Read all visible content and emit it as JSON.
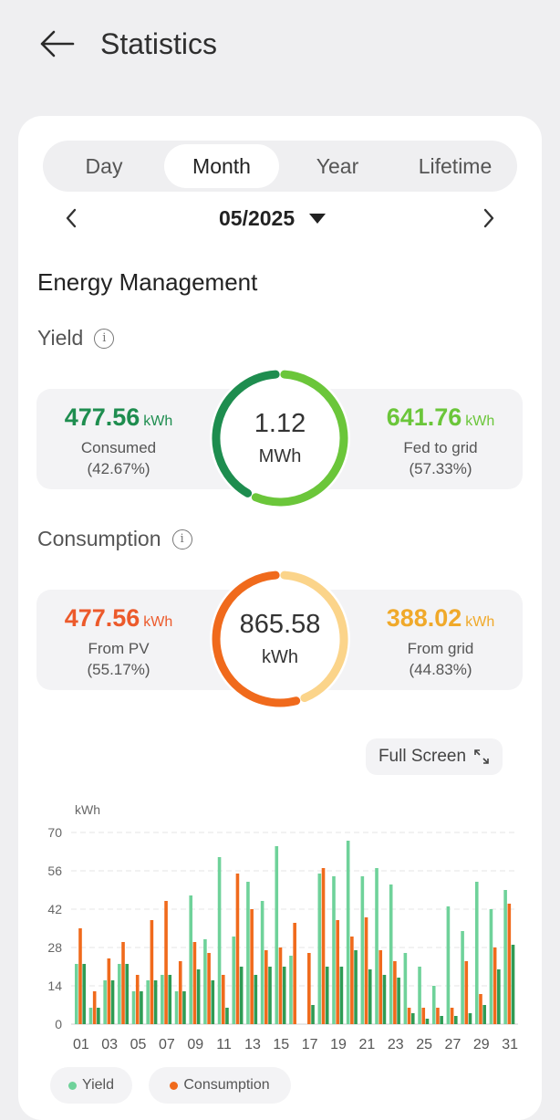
{
  "header": {
    "title": "Statistics"
  },
  "tabs": [
    {
      "label": "Day"
    },
    {
      "label": "Month"
    },
    {
      "label": "Year"
    },
    {
      "label": "Lifetime"
    }
  ],
  "active_tab": "Month",
  "date": "05/2025",
  "section_title": "Energy Management",
  "yield": {
    "title": "Yield",
    "total_value": "1.12",
    "total_unit": "MWh",
    "consumed": {
      "value": "477.56",
      "unit": "kWh",
      "label": "Consumed",
      "percent": "(42.67%)",
      "fraction": 0.4267
    },
    "fed": {
      "value": "641.76",
      "unit": "kWh",
      "label": "Fed to grid",
      "percent": "(57.33%)"
    }
  },
  "consumption": {
    "title": "Consumption",
    "total_value": "865.58",
    "total_unit": "kWh",
    "from_pv": {
      "value": "477.56",
      "unit": "kWh",
      "label": "From PV",
      "percent": "(55.17%)",
      "fraction": 0.5517
    },
    "from_grid": {
      "value": "388.02",
      "unit": "kWh",
      "label": "From grid",
      "percent": "(44.83%)"
    }
  },
  "full_screen_label": "Full Screen",
  "colors": {
    "yield": "#6fd29a",
    "consumption": "#f06a1c",
    "extra": "#2f9b54",
    "consumed": "#1e8d4f",
    "fed": "#6bc63a",
    "pv": "#ec5a2b",
    "grid": "#f0a92a"
  },
  "chart_data": {
    "type": "bar",
    "ylabel": "kWh",
    "ylim": [
      0,
      70
    ],
    "yticks": [
      0,
      14,
      28,
      42,
      56,
      70
    ],
    "categories": [
      "01",
      "02",
      "03",
      "04",
      "05",
      "06",
      "07",
      "08",
      "09",
      "10",
      "11",
      "12",
      "13",
      "14",
      "15",
      "16",
      "17",
      "18",
      "19",
      "20",
      "21",
      "22",
      "23",
      "24",
      "25",
      "26",
      "27",
      "28",
      "29",
      "30",
      "31"
    ],
    "xtick_labels": [
      "01",
      "03",
      "05",
      "07",
      "09",
      "11",
      "13",
      "15",
      "17",
      "19",
      "21",
      "23",
      "25",
      "27",
      "29",
      "31"
    ],
    "series": [
      {
        "name": "Yield",
        "color": "#6fd29a",
        "values": [
          22,
          6,
          16,
          22,
          12,
          16,
          18,
          12,
          47,
          31,
          61,
          32,
          52,
          45,
          65,
          25,
          0,
          55,
          54,
          67,
          54,
          57,
          51,
          26,
          21,
          14,
          43,
          34,
          52,
          42,
          49
        ]
      },
      {
        "name": "Consumption",
        "color": "#f06a1c",
        "values": [
          35,
          12,
          24,
          30,
          18,
          38,
          45,
          23,
          30,
          26,
          18,
          55,
          42,
          27,
          28,
          37,
          26,
          57,
          38,
          32,
          39,
          27,
          23,
          6,
          6,
          6,
          6,
          23,
          11,
          28,
          44
        ]
      },
      {
        "name": "",
        "color": "#2f9b54",
        "values": [
          22,
          6,
          16,
          22,
          12,
          16,
          18,
          12,
          20,
          16,
          6,
          21,
          18,
          21,
          21,
          0,
          7,
          21,
          21,
          27,
          20,
          18,
          17,
          4,
          2,
          3,
          3,
          4,
          7,
          20,
          29
        ]
      }
    ]
  }
}
